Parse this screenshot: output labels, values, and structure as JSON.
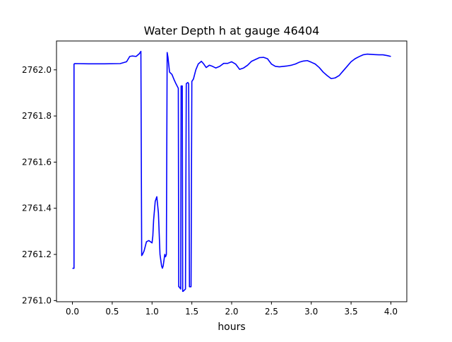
{
  "chart_data": {
    "type": "line",
    "title": "Water Depth h at gauge 46404",
    "xlabel": "hours",
    "ylabel": "",
    "xlim": [
      -0.2,
      4.2
    ],
    "ylim": [
      2760.995,
      2762.125
    ],
    "xticks": [
      0.0,
      0.5,
      1.0,
      1.5,
      2.0,
      2.5,
      3.0,
      3.5,
      4.0
    ],
    "xtick_labels": [
      "0.0",
      "0.5",
      "1.0",
      "1.5",
      "2.0",
      "2.5",
      "3.0",
      "3.5",
      "4.0"
    ],
    "yticks": [
      2761.0,
      2761.2,
      2761.4,
      2761.6,
      2761.8,
      2762.0
    ],
    "ytick_labels": [
      "2761.0",
      "2761.2",
      "2761.4",
      "2761.6",
      "2761.8",
      "2762.0"
    ],
    "grid": false,
    "series": [
      {
        "color": "#0000ff",
        "x": [
          0.0,
          0.02,
          0.02,
          0.03,
          0.2,
          0.4,
          0.6,
          0.68,
          0.72,
          0.75,
          0.8,
          0.84,
          0.86,
          0.87,
          0.88,
          0.9,
          0.93,
          0.96,
          1.0,
          1.01,
          1.02,
          1.04,
          1.06,
          1.08,
          1.1,
          1.12,
          1.13,
          1.14,
          1.16,
          1.17,
          1.18,
          1.19,
          1.2,
          1.22,
          1.25,
          1.28,
          1.3,
          1.33,
          1.335,
          1.34,
          1.36,
          1.365,
          1.37,
          1.38,
          1.385,
          1.39,
          1.42,
          1.43,
          1.45,
          1.46,
          1.47,
          1.48,
          1.49,
          1.5,
          1.52,
          1.55,
          1.58,
          1.62,
          1.65,
          1.68,
          1.72,
          1.76,
          1.8,
          1.85,
          1.9,
          1.95,
          2.0,
          2.05,
          2.1,
          2.15,
          2.2,
          2.25,
          2.3,
          2.35,
          2.4,
          2.45,
          2.5,
          2.55,
          2.6,
          2.65,
          2.7,
          2.75,
          2.8,
          2.85,
          2.9,
          2.95,
          3.0,
          3.05,
          3.1,
          3.15,
          3.2,
          3.25,
          3.3,
          3.35,
          3.4,
          3.45,
          3.5,
          3.55,
          3.6,
          3.65,
          3.7,
          3.75,
          3.8,
          3.85,
          3.9,
          3.95,
          4.0
        ],
        "y": [
          2761.14,
          2761.14,
          2762.025,
          2762.027,
          2762.026,
          2762.026,
          2762.027,
          2762.035,
          2762.058,
          2762.06,
          2762.058,
          2762.07,
          2762.08,
          2761.195,
          2761.2,
          2761.215,
          2761.255,
          2761.26,
          2761.25,
          2761.28,
          2761.35,
          2761.43,
          2761.45,
          2761.38,
          2761.2,
          2761.15,
          2761.14,
          2761.15,
          2761.2,
          2761.19,
          2761.2,
          2762.075,
          2762.055,
          2761.99,
          2761.98,
          2761.955,
          2761.94,
          2761.92,
          2761.06,
          2761.06,
          2761.05,
          2761.93,
          2761.93,
          2761.93,
          2761.04,
          2761.04,
          2761.05,
          2761.94,
          2761.945,
          2761.94,
          2761.06,
          2761.06,
          2761.06,
          2761.95,
          2761.96,
          2762.0,
          2762.025,
          2762.037,
          2762.025,
          2762.01,
          2762.02,
          2762.015,
          2762.008,
          2762.015,
          2762.028,
          2762.028,
          2762.035,
          2762.025,
          2762.002,
          2762.008,
          2762.02,
          2762.037,
          2762.045,
          2762.053,
          2762.054,
          2762.048,
          2762.025,
          2762.015,
          2762.013,
          2762.015,
          2762.017,
          2762.02,
          2762.025,
          2762.033,
          2762.038,
          2762.04,
          2762.033,
          2762.025,
          2762.01,
          2761.99,
          2761.975,
          2761.962,
          2761.965,
          2761.975,
          2761.995,
          2762.015,
          2762.035,
          2762.048,
          2762.057,
          2762.065,
          2762.068,
          2762.067,
          2762.066,
          2762.065,
          2762.065,
          2762.062,
          2762.058
        ]
      }
    ]
  }
}
